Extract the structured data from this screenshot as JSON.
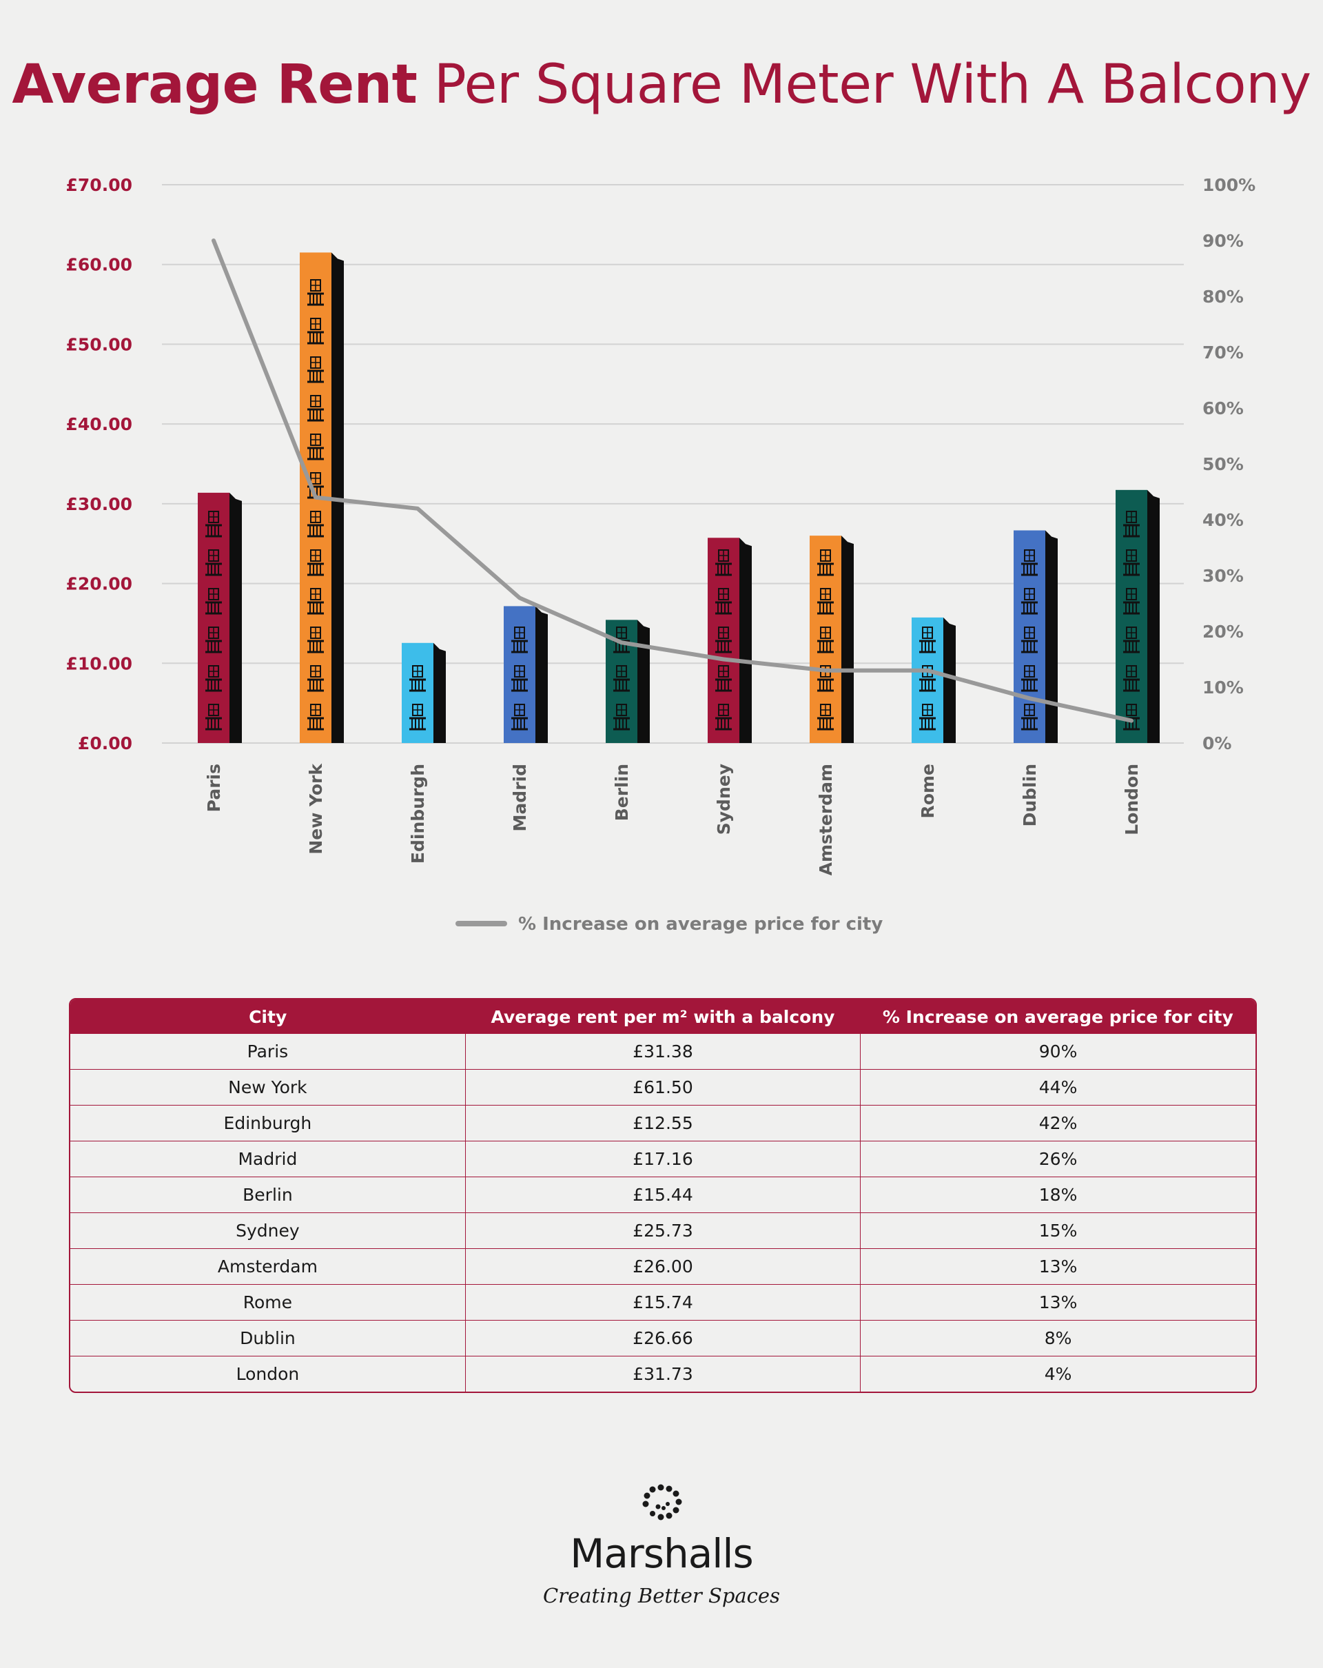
{
  "title": {
    "bold": "Average Rent",
    "rest": " Per Square Meter With A Balcony"
  },
  "chart_data": {
    "type": "bar",
    "categories": [
      "Paris",
      "New York",
      "Edinburgh",
      "Madrid",
      "Berlin",
      "Sydney",
      "Amsterdam",
      "Rome",
      "Dublin",
      "London"
    ],
    "series": [
      {
        "name": "",
        "axis": "left",
        "values": [
          31.38,
          61.5,
          12.55,
          17.16,
          15.44,
          25.73,
          26.0,
          15.74,
          26.66,
          31.73
        ],
        "colors": [
          "#a3163a",
          "#f28c2e",
          "#3dbdea",
          "#4472c4",
          "#0d5c52",
          "#a3163a",
          "#f28c2e",
          "#3dbdea",
          "#4472c4",
          "#0d5c52"
        ]
      },
      {
        "name": "% Increase on average price for city",
        "type": "line",
        "axis": "right",
        "color": "#999999",
        "values": [
          90,
          44,
          42,
          26,
          18,
          15,
          13,
          13,
          8,
          4
        ]
      }
    ],
    "y_left": {
      "min": 0,
      "max": 70,
      "ticks": [
        "£0.00",
        "£10.00",
        "£20.00",
        "£30.00",
        "£40.00",
        "£50.00",
        "£60.00",
        "£70.00"
      ]
    },
    "y_right": {
      "min": 0,
      "max": 100,
      "ticks": [
        "0%",
        "10%",
        "20%",
        "30%",
        "40%",
        "50%",
        "60%",
        "70%",
        "80%",
        "90%",
        "100%"
      ]
    },
    "grid": true,
    "legend": "bottom-center"
  },
  "table": {
    "headers": [
      "City",
      "Average rent per m² with a balcony",
      "% Increase on average price for city"
    ],
    "rows": [
      [
        "Paris",
        "£31.38",
        "90%"
      ],
      [
        "New York",
        "£61.50",
        "44%"
      ],
      [
        "Edinburgh",
        "£12.55",
        "42%"
      ],
      [
        "Madrid",
        "£17.16",
        "26%"
      ],
      [
        "Berlin",
        "£15.44",
        "18%"
      ],
      [
        "Sydney",
        "£25.73",
        "15%"
      ],
      [
        "Amsterdam",
        "£26.00",
        "13%"
      ],
      [
        "Rome",
        "£15.74",
        "13%"
      ],
      [
        "Dublin",
        "£26.66",
        "8%"
      ],
      [
        "London",
        "£31.73",
        "4%"
      ]
    ]
  },
  "brand": {
    "name": "Marshalls",
    "tagline": "Creating Better Spaces",
    "logo_icon": "dotted-spiral-icon"
  }
}
